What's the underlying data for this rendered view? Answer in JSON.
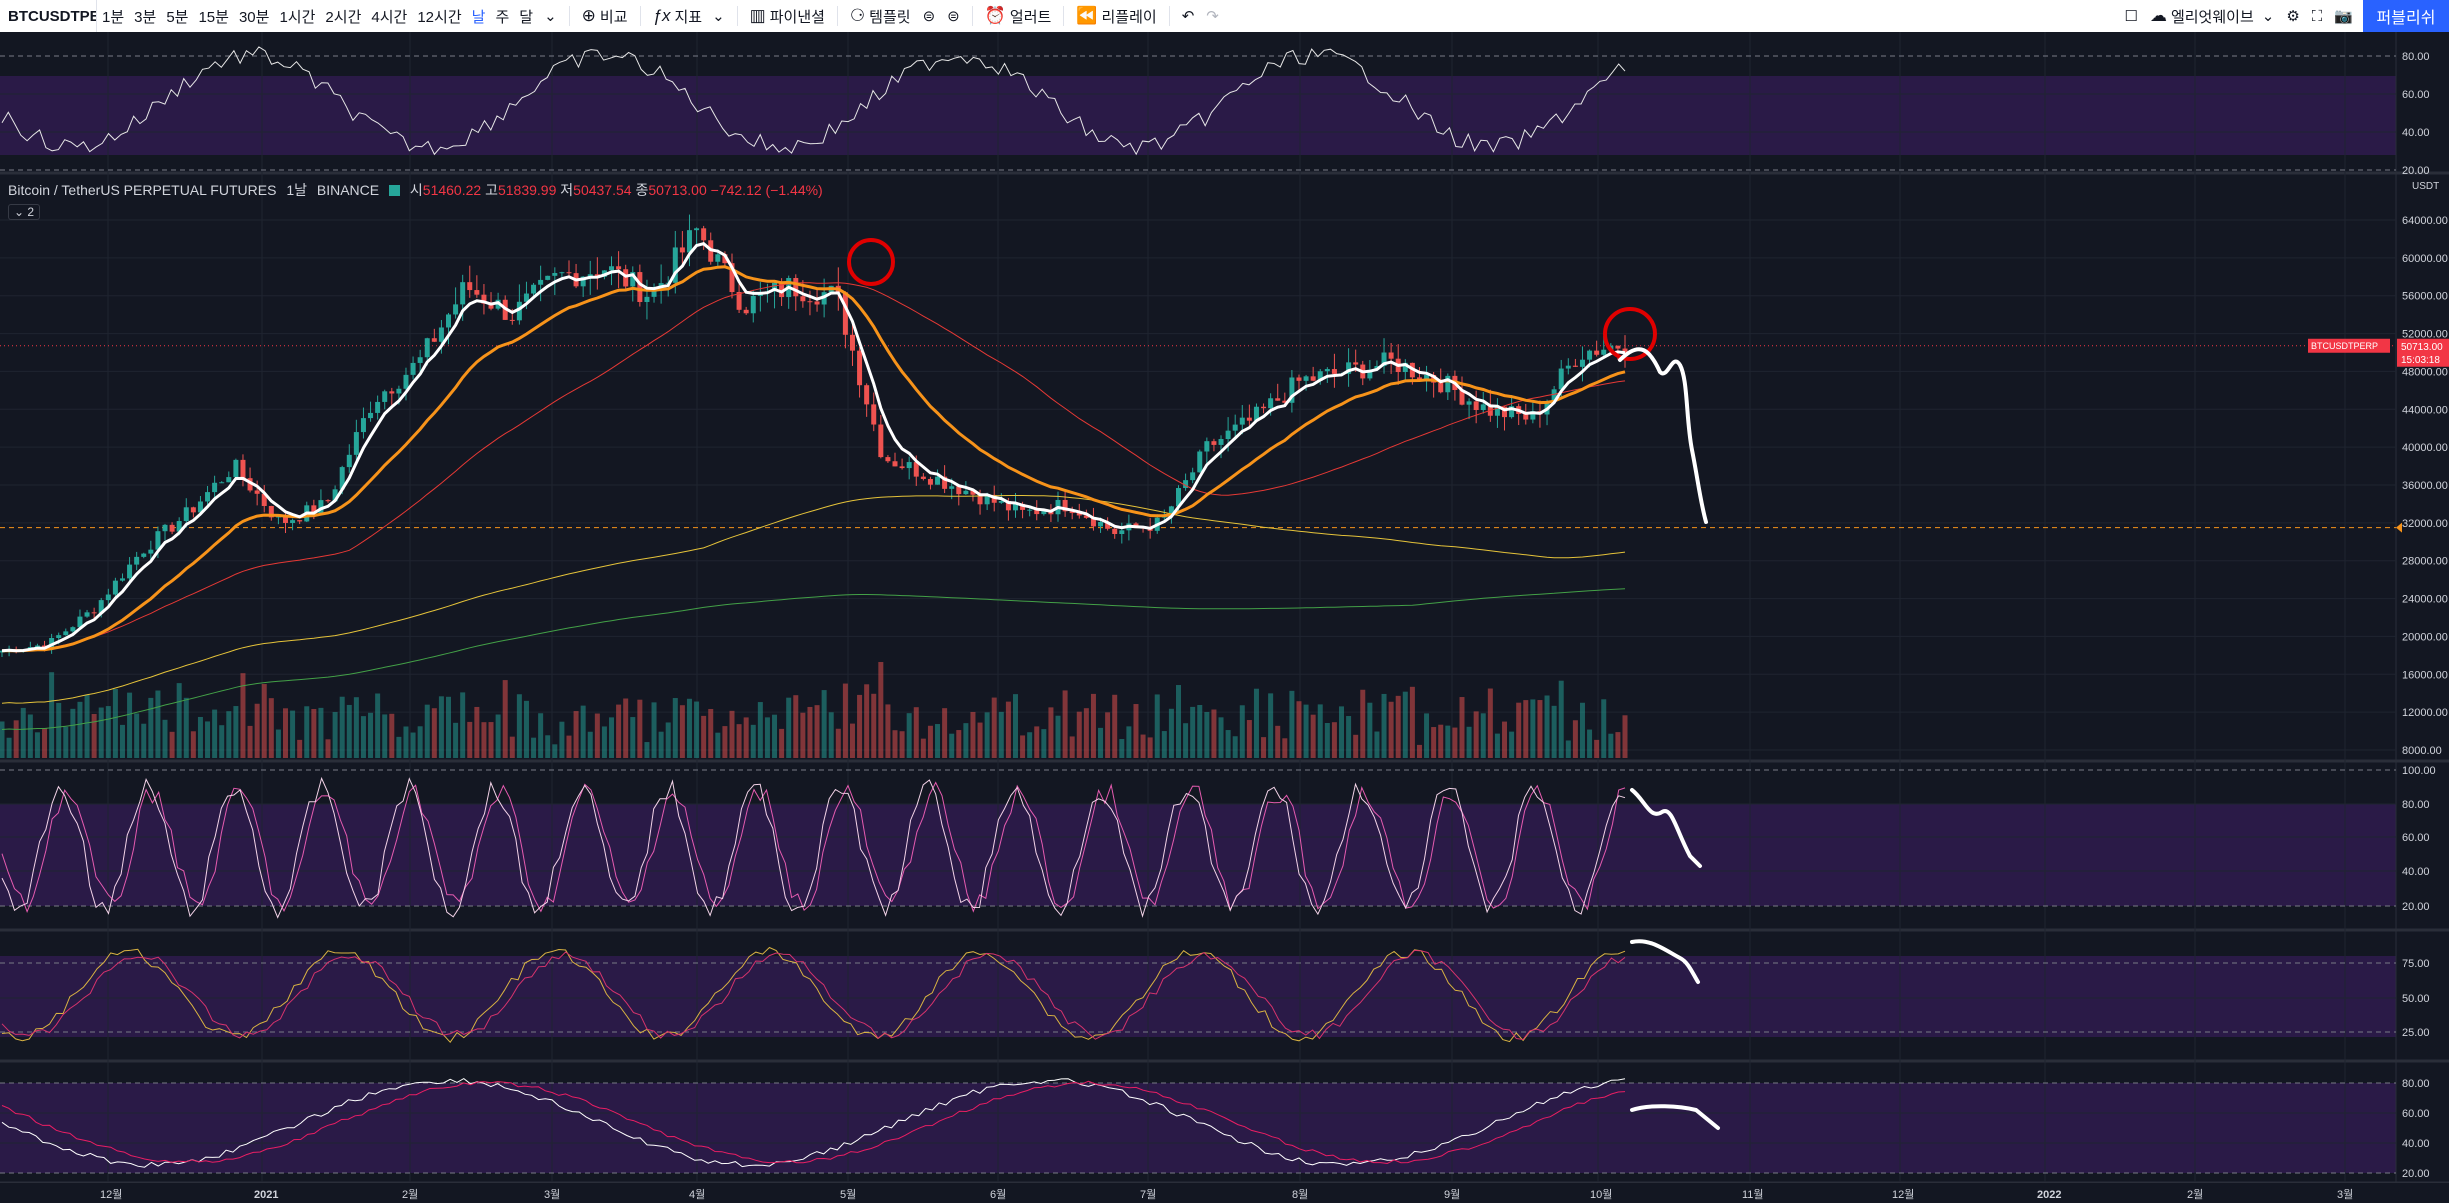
{
  "toolbar": {
    "symbol": "BTCUSDTPERP",
    "intervals": [
      "1분",
      "3분",
      "5분",
      "15분",
      "30분",
      "1시간",
      "2시간",
      "4시간",
      "12시간",
      "날",
      "주",
      "달"
    ],
    "active_interval": "날",
    "compare": "비교",
    "indicators": "지표",
    "financials": "파이낸셜",
    "templates": "템플릿",
    "alert": "얼러트",
    "replay": "리플레이",
    "layout_name": "엘리엇웨이브",
    "publish": "퍼블리쉬"
  },
  "legend": {
    "title": "Bitcoin / TetherUS PERPETUAL FUTURES",
    "interval": "1날",
    "exchange": "BINANCE",
    "o_label": "시",
    "o": "51460.22",
    "h_label": "고",
    "h": "51839.99",
    "l_label": "저",
    "l": "50437.54",
    "c_label": "종",
    "c": "50713.00",
    "change": "−742.12 (−1.44%)",
    "collapse": "2"
  },
  "price_axis": {
    "unit": "USDT",
    "ticks": [
      "64000.00",
      "60000.00",
      "56000.00",
      "52000.00",
      "48000.00",
      "44000.00",
      "40000.00",
      "36000.00",
      "32000.00",
      "28000.00",
      "24000.00",
      "20000.00",
      "16000.00",
      "12000.00",
      "8000.00"
    ],
    "current_label": "BTCUSDTPERP",
    "current_price": "50713.00",
    "countdown": "15:03:18"
  },
  "pane_axes": {
    "top": [
      "80.00",
      "60.00",
      "40.00",
      "20.00"
    ],
    "stoch": [
      "100.00",
      "80.00",
      "60.00",
      "40.00",
      "20.00"
    ],
    "stoch2": [
      "75.00",
      "50.00",
      "25.00"
    ],
    "bottom": [
      "80.00",
      "60.00",
      "40.00",
      "20.00"
    ]
  },
  "time_axis": [
    "12월",
    "2021",
    "2월",
    "3월",
    "4월",
    "5월",
    "6월",
    "7월",
    "8월",
    "9월",
    "10월",
    "11월",
    "12월",
    "2022",
    "2월",
    "3월"
  ],
  "colors": {
    "bg": "#131722",
    "band": "#2a1a47",
    "up": "#26a69a",
    "down": "#ef5350",
    "ema_fast": "#ffffff",
    "ema_mid": "#f7931a",
    "ma_red": "#e53935",
    "ma_yellow": "#e5c33a",
    "ma_green": "#43a047",
    "accent": "#2962ff"
  },
  "chart_data": {
    "type": "line",
    "series": [
      {
        "values": [
          18500,
          19200,
          23000,
          29000,
          33000,
          38000,
          32000,
          34000,
          45000,
          49000,
          57000,
          54000,
          58000,
          59000,
          56000,
          63000,
          55000,
          57000,
          56000,
          39000,
          37000,
          35000,
          33000,
          34000,
          31000,
          32000,
          40000,
          43000,
          47000,
          48000,
          49000,
          47000,
          44000,
          43000,
          50000,
          51000
        ]
      }
    ],
    "ylim": [
      8000,
      66000
    ]
  }
}
